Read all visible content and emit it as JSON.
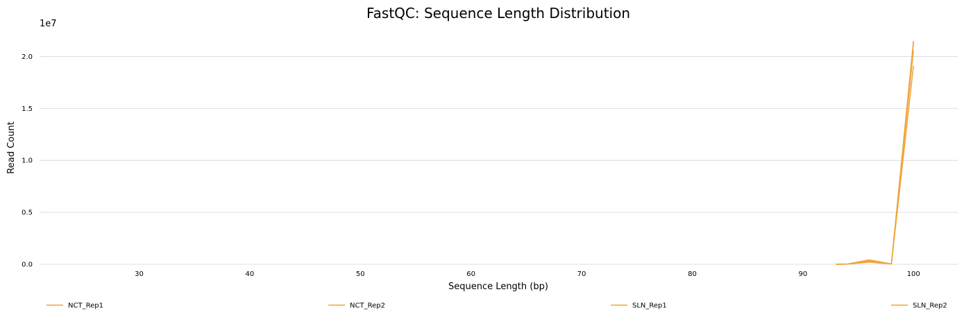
{
  "chart_data": {
    "type": "line",
    "title": "FastQC: Sequence Length Distribution",
    "xlabel": "Sequence Length (bp)",
    "ylabel": "Read Count",
    "y_multiplier_label": "1e7",
    "xlim": [
      21,
      104
    ],
    "ylim": [
      0,
      22500000
    ],
    "xticks": [
      30,
      40,
      50,
      60,
      70,
      80,
      90,
      100
    ],
    "yticks": [
      0,
      5000000,
      10000000,
      15000000,
      20000000
    ],
    "ytick_labels": [
      "0.0",
      "0.5",
      "1.0",
      "1.5",
      "2.0"
    ],
    "grid": "horizontal",
    "legend_position": "bottom",
    "line_color": "#f0a53c",
    "series": [
      {
        "name": "NCT_Rep1",
        "x": [
          93,
          94,
          96,
          98,
          100
        ],
        "y": [
          0,
          20000,
          420000,
          30000,
          21500000
        ]
      },
      {
        "name": "NCT_Rep2",
        "x": [
          93,
          94,
          96,
          98,
          100
        ],
        "y": [
          0,
          15000,
          300000,
          20000,
          19100000
        ]
      },
      {
        "name": "SLN_Rep1",
        "x": [
          93,
          94,
          96,
          98,
          100
        ],
        "y": [
          0,
          10000,
          200000,
          15000,
          21300000
        ]
      },
      {
        "name": "SLN_Rep2",
        "x": [
          93,
          94,
          96,
          98,
          100
        ],
        "y": [
          0,
          10000,
          350000,
          25000,
          20600000
        ]
      }
    ]
  }
}
